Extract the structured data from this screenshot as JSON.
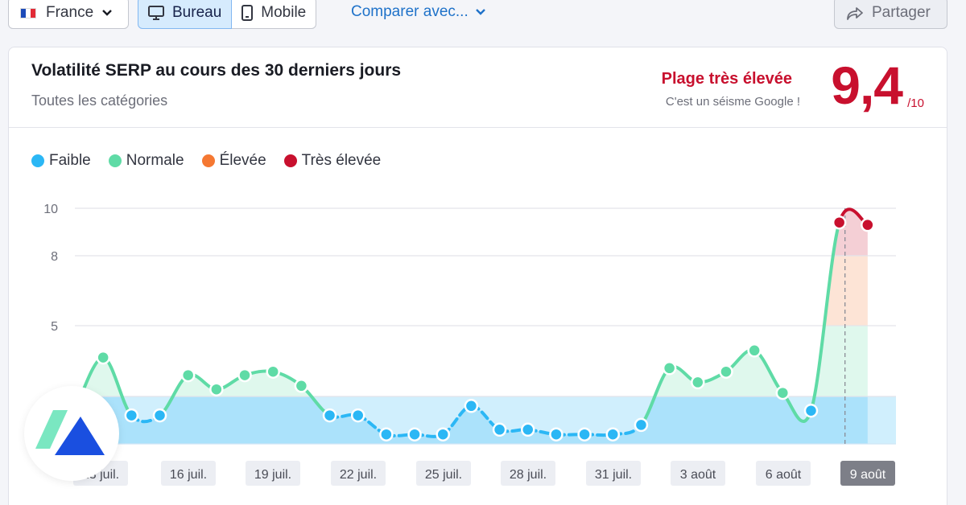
{
  "toolbar": {
    "country": "France",
    "device_desktop": "Bureau",
    "device_mobile": "Mobile",
    "compare": "Comparer avec...",
    "share": "Partager"
  },
  "header": {
    "title": "Volatilité SERP au cours des 30 derniers jours",
    "subtitle": "Toutes les catégories",
    "range_label": "Plage très élevée",
    "range_sub": "C'est un séisme Google !",
    "score": "9,4",
    "score_max": "/10"
  },
  "legend": [
    {
      "label": "Faible",
      "color": "#2bb7f5"
    },
    {
      "label": "Normale",
      "color": "#5fdba6"
    },
    {
      "label": "Élevée",
      "color": "#f57832"
    },
    {
      "label": "Très élevée",
      "color": "#c8102e"
    }
  ],
  "colors": {
    "low": "#2bb7f5",
    "normal": "#5fdba6",
    "high": "#f57832",
    "very_high": "#c8102e",
    "accent": "#1f72c9"
  },
  "chart_data": {
    "type": "line",
    "title": "Volatilité SERP au cours des 30 derniers jours",
    "xlabel": "",
    "ylabel": "",
    "ylim": [
      2,
      10
    ],
    "y_ticks": [
      10,
      8,
      5
    ],
    "band_thresholds": [
      2,
      3,
      5,
      8,
      10
    ],
    "x_tick_labels": [
      "13 juil.",
      "16 juil.",
      "19 juil.",
      "22 juil.",
      "25 juil.",
      "28 juil.",
      "31 juil.",
      "3 août",
      "6 août",
      "9 août"
    ],
    "highlighted_tick": "9 août",
    "grid": true,
    "legend_position": "top-left",
    "x": [
      12,
      13,
      14,
      15,
      16,
      17,
      18,
      19,
      20,
      21,
      22,
      23,
      24,
      25,
      26,
      27,
      28,
      29,
      30,
      31,
      32,
      33,
      34,
      35,
      36,
      37,
      38,
      39,
      40
    ],
    "values": [
      2.7,
      4.1,
      2.6,
      2.6,
      3.6,
      3.2,
      3.6,
      3.7,
      3.3,
      2.6,
      2.6,
      2.2,
      2.2,
      2.2,
      2.8,
      2.3,
      2.3,
      2.2,
      2.2,
      2.2,
      2.4,
      3.8,
      3.4,
      3.7,
      4.3,
      3.1,
      2.7,
      9.4,
      9.3
    ],
    "value_scale_note": ""
  }
}
